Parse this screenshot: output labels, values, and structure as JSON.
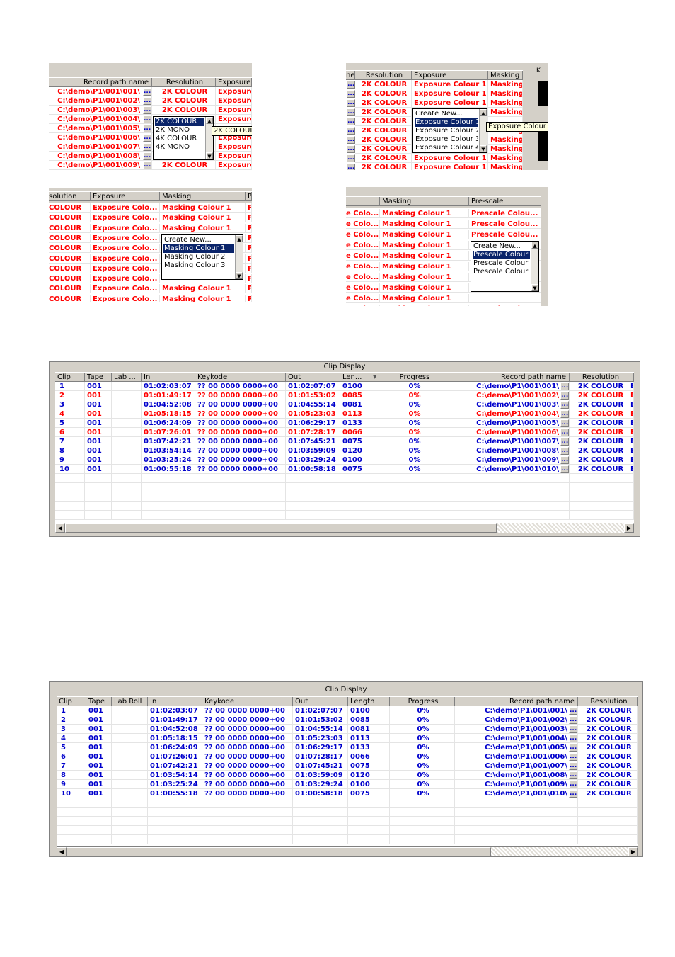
{
  "s1": {
    "headers": [
      "Record path name",
      "Resolution",
      "Exposure"
    ],
    "rows": [
      {
        "path": "C:\\demo\\P1\\001\\001\\",
        "res": "2K COLOUR",
        "exp": "Exposure"
      },
      {
        "path": "C:\\demo\\P1\\001\\002\\",
        "res": "2K COLOUR",
        "exp": "Exposure"
      },
      {
        "path": "C:\\demo\\P1\\001\\003\\",
        "res": "2K COLOUR",
        "exp": "Exposure"
      },
      {
        "path": "C:\\demo\\P1\\001\\004\\",
        "res": "",
        "exp": "Exposure"
      },
      {
        "path": "C:\\demo\\P1\\001\\005\\",
        "res": "",
        "exp": ""
      },
      {
        "path": "C:\\demo\\P1\\001\\006\\",
        "res": "",
        "exp": "Exposure"
      },
      {
        "path": "C:\\demo\\P1\\001\\007\\",
        "res": "",
        "exp": "Exposure"
      },
      {
        "path": "C:\\demo\\P1\\001\\008\\",
        "res": "",
        "exp": "Exposure"
      },
      {
        "path": "C:\\demo\\P1\\001\\009\\",
        "res": "2K COLOUR",
        "exp": "Exposure"
      }
    ],
    "dropdown": [
      "2K COLOUR",
      "2K MONO",
      "4K COLOUR",
      "4K MONO"
    ],
    "tooltip": "2K COLOUR",
    "ellipsis": "..."
  },
  "s2": {
    "headers": [
      "ne",
      "Resolution",
      "Exposure",
      "Masking"
    ],
    "rows": [
      {
        "res": "2K COLOUR",
        "exp": "Exposure Colour 1",
        "mask": "Masking"
      },
      {
        "res": "2K COLOUR",
        "exp": "Exposure Colour 1",
        "mask": "Masking"
      },
      {
        "res": "2K COLOUR",
        "exp": "Exposure Colour 1",
        "mask": "Masking"
      },
      {
        "res": "2K COLOUR",
        "exp": "",
        "mask": "Masking"
      },
      {
        "res": "2K COLOUR",
        "exp": "",
        "mask": ""
      },
      {
        "res": "2K COLOUR",
        "exp": "",
        "mask": "Masking"
      },
      {
        "res": "2K COLOUR",
        "exp": "",
        "mask": "Masking"
      },
      {
        "res": "2K COLOUR",
        "exp": "",
        "mask": "Masking"
      },
      {
        "res": "2K COLOUR",
        "exp": "Exposure Colour 1",
        "mask": "Masking"
      },
      {
        "res": "2K COLOUR",
        "exp": "Exposure Colour 1",
        "mask": "Masking"
      }
    ],
    "dropdown": [
      "Create New...",
      "Exposure Colour 1",
      "Exposure Colour 2",
      "Exposure Colour 3",
      "Exposure Colour 4"
    ],
    "tooltip": "Exposure Colour 1",
    "side_label": "K",
    "ellipsis": "..."
  },
  "s3": {
    "headers": [
      "solution",
      "Exposure",
      "Masking",
      "P"
    ],
    "rows": [
      {
        "res": "COLOUR",
        "exp": "Exposure Colo...",
        "mask": "Masking Colour 1",
        "p": "P"
      },
      {
        "res": "COLOUR",
        "exp": "Exposure Colo...",
        "mask": "Masking Colour 1",
        "p": "P"
      },
      {
        "res": "COLOUR",
        "exp": "Exposure Colo...",
        "mask": "Masking Colour 1",
        "p": "P"
      },
      {
        "res": "COLOUR",
        "exp": "Exposure Colo...",
        "mask": "",
        "p": "P"
      },
      {
        "res": "COLOUR",
        "exp": "Exposure Colo...",
        "mask": "",
        "p": "P"
      },
      {
        "res": "COLOUR",
        "exp": "Exposure Colo...",
        "mask": "",
        "p": "P"
      },
      {
        "res": "COLOUR",
        "exp": "Exposure Colo...",
        "mask": "",
        "p": "P"
      },
      {
        "res": "COLOUR",
        "exp": "Exposure Colo...",
        "mask": "",
        "p": "P"
      },
      {
        "res": "COLOUR",
        "exp": "Exposure Colo...",
        "mask": "Masking Colour 1",
        "p": "P"
      },
      {
        "res": "COLOUR",
        "exp": "Exposure Colo...",
        "mask": "Masking Colour 1",
        "p": "P"
      }
    ],
    "dropdown": [
      "Create New...",
      "Masking Colour 1",
      "Masking Colour 2",
      "Masking Colour 3"
    ]
  },
  "s4": {
    "headers": [
      "",
      "Masking",
      "Pre-scale"
    ],
    "rows": [
      {
        "exp": "e Colo...",
        "mask": "Masking Colour 1",
        "pre": "Prescale Colou..."
      },
      {
        "exp": "e Colo...",
        "mask": "Masking Colour 1",
        "pre": "Prescale Colou..."
      },
      {
        "exp": "e Colo...",
        "mask": "Masking Colour 1",
        "pre": "Prescale Colou..."
      },
      {
        "exp": "e Colo...",
        "mask": "Masking Colour 1",
        "pre": ""
      },
      {
        "exp": "e Colo...",
        "mask": "Masking Colour 1",
        "pre": ""
      },
      {
        "exp": "e Colo...",
        "mask": "Masking Colour 1",
        "pre": ""
      },
      {
        "exp": "e Colo...",
        "mask": "Masking Colour 1",
        "pre": ""
      },
      {
        "exp": "e Colo...",
        "mask": "Masking Colour 1",
        "pre": ""
      },
      {
        "exp": "e Colo...",
        "mask": "Masking Colour 1",
        "pre": ""
      },
      {
        "exp": "e Colo...",
        "mask": "Masking Colour 1",
        "pre": "Prescale Colou..."
      }
    ],
    "dropdown": [
      "Create New...",
      "Prescale Colour",
      "Prescale Colour",
      "Prescale Colour"
    ]
  },
  "cd1": {
    "title": "Clip Display",
    "headers": [
      "Clip",
      "Tape",
      "Lab ...",
      "In",
      "Keykode",
      "Out",
      "Len...",
      "Progress",
      "Record path name",
      "Resolution",
      "E"
    ],
    "rows": [
      {
        "clip": "1",
        "tape": "001",
        "in": "01:02:03:07",
        "key": "?? 00 0000 0000+00",
        "out": "01:02:07:07",
        "len": "0100",
        "prog": "0%",
        "path": "C:\\demo\\P1\\001\\001\\",
        "res": "2K COLOUR",
        "e": "E",
        "color": "blue"
      },
      {
        "clip": "2",
        "tape": "001",
        "in": "01:01:49:17",
        "key": "?? 00 0000 0000+00",
        "out": "01:01:53:02",
        "len": "0085",
        "prog": "0%",
        "path": "C:\\demo\\P1\\001\\002\\",
        "res": "2K COLOUR",
        "e": "E",
        "color": "red"
      },
      {
        "clip": "3",
        "tape": "001",
        "in": "01:04:52:08",
        "key": "?? 00 0000 0000+00",
        "out": "01:04:55:14",
        "len": "0081",
        "prog": "0%",
        "path": "C:\\demo\\P1\\001\\003\\",
        "res": "2K COLOUR",
        "e": "E",
        "color": "blue"
      },
      {
        "clip": "4",
        "tape": "001",
        "in": "01:05:18:15",
        "key": "?? 00 0000 0000+00",
        "out": "01:05:23:03",
        "len": "0113",
        "prog": "0%",
        "path": "C:\\demo\\P1\\001\\004\\",
        "res": "2K COLOUR",
        "e": "E",
        "color": "red"
      },
      {
        "clip": "5",
        "tape": "001",
        "in": "01:06:24:09",
        "key": "?? 00 0000 0000+00",
        "out": "01:06:29:17",
        "len": "0133",
        "prog": "0%",
        "path": "C:\\demo\\P1\\001\\005\\",
        "res": "2K COLOUR",
        "e": "E",
        "color": "blue"
      },
      {
        "clip": "6",
        "tape": "001",
        "in": "01:07:26:01",
        "key": "?? 00 0000 0000+00",
        "out": "01:07:28:17",
        "len": "0066",
        "prog": "0%",
        "path": "C:\\demo\\P1\\001\\006\\",
        "res": "2K COLOUR",
        "e": "E",
        "color": "red"
      },
      {
        "clip": "7",
        "tape": "001",
        "in": "01:07:42:21",
        "key": "?? 00 0000 0000+00",
        "out": "01:07:45:21",
        "len": "0075",
        "prog": "0%",
        "path": "C:\\demo\\P1\\001\\007\\",
        "res": "2K COLOUR",
        "e": "E",
        "color": "blue"
      },
      {
        "clip": "8",
        "tape": "001",
        "in": "01:03:54:14",
        "key": "?? 00 0000 0000+00",
        "out": "01:03:59:09",
        "len": "0120",
        "prog": "0%",
        "path": "C:\\demo\\P1\\001\\008\\",
        "res": "2K COLOUR",
        "e": "E",
        "color": "blue"
      },
      {
        "clip": "9",
        "tape": "001",
        "in": "01:03:25:24",
        "key": "?? 00 0000 0000+00",
        "out": "01:03:29:24",
        "len": "0100",
        "prog": "0%",
        "path": "C:\\demo\\P1\\001\\009\\",
        "res": "2K COLOUR",
        "e": "E",
        "color": "blue"
      },
      {
        "clip": "10",
        "tape": "001",
        "in": "01:00:55:18",
        "key": "?? 00 0000 0000+00",
        "out": "01:00:58:18",
        "len": "0075",
        "prog": "0%",
        "path": "C:\\demo\\P1\\001\\010\\",
        "res": "2K COLOUR",
        "e": "E",
        "color": "blue"
      }
    ],
    "ellipsis": "...",
    "sort_icon": "sort-down-icon"
  },
  "cd2": {
    "title": "Clip Display",
    "headers": [
      "Clip",
      "Tape",
      "Lab Roll",
      "In",
      "Keykode",
      "Out",
      "Length",
      "Progress",
      "Record path name",
      "Resolution"
    ],
    "rows": [
      {
        "clip": "1",
        "tape": "001",
        "in": "01:02:03:07",
        "key": "?? 00 0000 0000+00",
        "out": "01:02:07:07",
        "len": "0100",
        "prog": "0%",
        "path": "C:\\demo\\P1\\001\\001\\",
        "res": "2K COLOUR"
      },
      {
        "clip": "2",
        "tape": "001",
        "in": "01:01:49:17",
        "key": "?? 00 0000 0000+00",
        "out": "01:01:53:02",
        "len": "0085",
        "prog": "0%",
        "path": "C:\\demo\\P1\\001\\002\\",
        "res": "2K COLOUR"
      },
      {
        "clip": "3",
        "tape": "001",
        "in": "01:04:52:08",
        "key": "?? 00 0000 0000+00",
        "out": "01:04:55:14",
        "len": "0081",
        "prog": "0%",
        "path": "C:\\demo\\P1\\001\\003\\",
        "res": "2K COLOUR"
      },
      {
        "clip": "4",
        "tape": "001",
        "in": "01:05:18:15",
        "key": "?? 00 0000 0000+00",
        "out": "01:05:23:03",
        "len": "0113",
        "prog": "0%",
        "path": "C:\\demo\\P1\\001\\004\\",
        "res": "2K COLOUR"
      },
      {
        "clip": "5",
        "tape": "001",
        "in": "01:06:24:09",
        "key": "?? 00 0000 0000+00",
        "out": "01:06:29:17",
        "len": "0133",
        "prog": "0%",
        "path": "C:\\demo\\P1\\001\\005\\",
        "res": "2K COLOUR"
      },
      {
        "clip": "6",
        "tape": "001",
        "in": "01:07:26:01",
        "key": "?? 00 0000 0000+00",
        "out": "01:07:28:17",
        "len": "0066",
        "prog": "0%",
        "path": "C:\\demo\\P1\\001\\006\\",
        "res": "2K COLOUR"
      },
      {
        "clip": "7",
        "tape": "001",
        "in": "01:07:42:21",
        "key": "?? 00 0000 0000+00",
        "out": "01:07:45:21",
        "len": "0075",
        "prog": "0%",
        "path": "C:\\demo\\P1\\001\\007\\",
        "res": "2K COLOUR"
      },
      {
        "clip": "8",
        "tape": "001",
        "in": "01:03:54:14",
        "key": "?? 00 0000 0000+00",
        "out": "01:03:59:09",
        "len": "0120",
        "prog": "0%",
        "path": "C:\\demo\\P1\\001\\008\\",
        "res": "2K COLOUR"
      },
      {
        "clip": "9",
        "tape": "001",
        "in": "01:03:25:24",
        "key": "?? 00 0000 0000+00",
        "out": "01:03:29:24",
        "len": "0100",
        "prog": "0%",
        "path": "C:\\demo\\P1\\001\\009\\",
        "res": "2K COLOUR"
      },
      {
        "clip": "10",
        "tape": "001",
        "in": "01:00:55:18",
        "key": "?? 00 0000 0000+00",
        "out": "01:00:58:18",
        "len": "0075",
        "prog": "0%",
        "path": "C:\\demo\\P1\\001\\010\\",
        "res": "2K COLOUR"
      }
    ],
    "ellipsis": "..."
  },
  "colors": {
    "red": "#ff0000",
    "blue": "#0000cc",
    "selection": "#0a246a",
    "window": "#d4d0c8"
  }
}
